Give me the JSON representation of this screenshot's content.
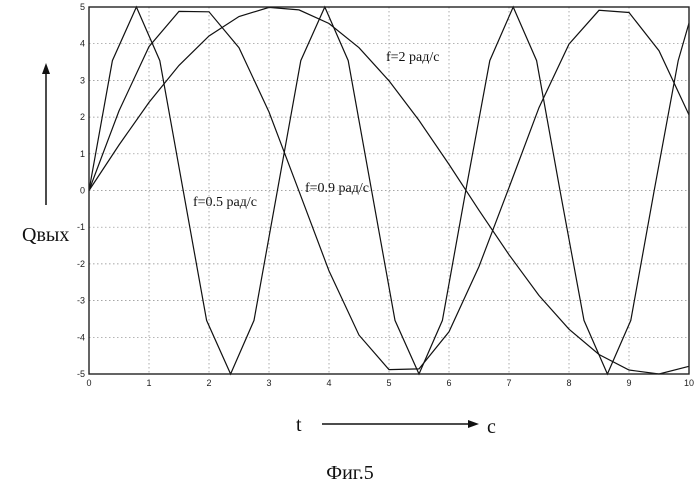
{
  "chart_data": {
    "type": "line",
    "xlim": [
      0,
      10
    ],
    "ylim": [
      -5,
      5
    ],
    "grid": true,
    "xticks": [
      0,
      1,
      2,
      3,
      4,
      5,
      6,
      7,
      8,
      9,
      10
    ],
    "yticks": [
      5,
      4,
      3,
      2,
      1,
      0,
      -1,
      -2,
      -3,
      -4,
      -5
    ],
    "ylabel": "Qвых",
    "xlabel_left": "t",
    "xlabel_right": "c",
    "series": [
      {
        "name": "f=2 рад/с",
        "x": [
          0,
          0.39,
          0.79,
          1.18,
          1.57,
          1.96,
          2.36,
          2.75,
          3.14,
          3.53,
          3.93,
          4.32,
          4.71,
          5.1,
          5.5,
          5.89,
          6.28,
          6.68,
          7.07,
          7.46,
          7.85,
          8.25,
          8.64,
          9.03,
          9.42,
          9.82,
          10
        ],
        "y": [
          0,
          3.54,
          5,
          3.54,
          0,
          -3.54,
          -5,
          -3.54,
          0,
          3.54,
          5,
          3.54,
          0,
          -3.54,
          -5,
          -3.54,
          0,
          3.54,
          5,
          3.54,
          0,
          -3.54,
          -5,
          -3.54,
          0,
          3.54,
          4.56
        ]
      },
      {
        "name": "f=0.9 рад/с",
        "x": [
          0,
          0.5,
          1,
          1.5,
          2,
          2.5,
          3,
          3.5,
          4,
          4.5,
          5,
          5.5,
          6,
          6.5,
          7,
          7.5,
          8,
          8.5,
          9,
          9.5,
          10
        ],
        "y": [
          0,
          2.17,
          3.92,
          4.88,
          4.87,
          3.89,
          2.14,
          -0.02,
          -2.19,
          -3.94,
          -4.88,
          -4.86,
          -3.85,
          -2.07,
          0.08,
          2.26,
          3.99,
          4.91,
          4.85,
          3.81,
          2.06
        ]
      },
      {
        "name": "f=0.5 рад/с",
        "x": [
          0,
          0.5,
          1,
          1.5,
          2,
          2.5,
          3,
          3.5,
          4,
          4.5,
          5,
          5.5,
          6,
          6.5,
          7,
          7.5,
          8,
          8.5,
          9,
          9.5,
          10
        ],
        "y": [
          0,
          1.24,
          2.4,
          3.41,
          4.21,
          4.74,
          4.99,
          4.92,
          4.55,
          3.89,
          2.99,
          1.91,
          0.71,
          -0.54,
          -1.75,
          -2.86,
          -3.78,
          -4.47,
          -4.89,
          -5,
          -4.79
        ]
      }
    ]
  },
  "annotations": [
    {
      "key": "a1",
      "text": "f=2 рад/с"
    },
    {
      "key": "a2",
      "text": "f=0.9 рад/с"
    },
    {
      "key": "a3",
      "text": "f=0.5 рад/с"
    }
  ],
  "caption": "Фиг.5"
}
